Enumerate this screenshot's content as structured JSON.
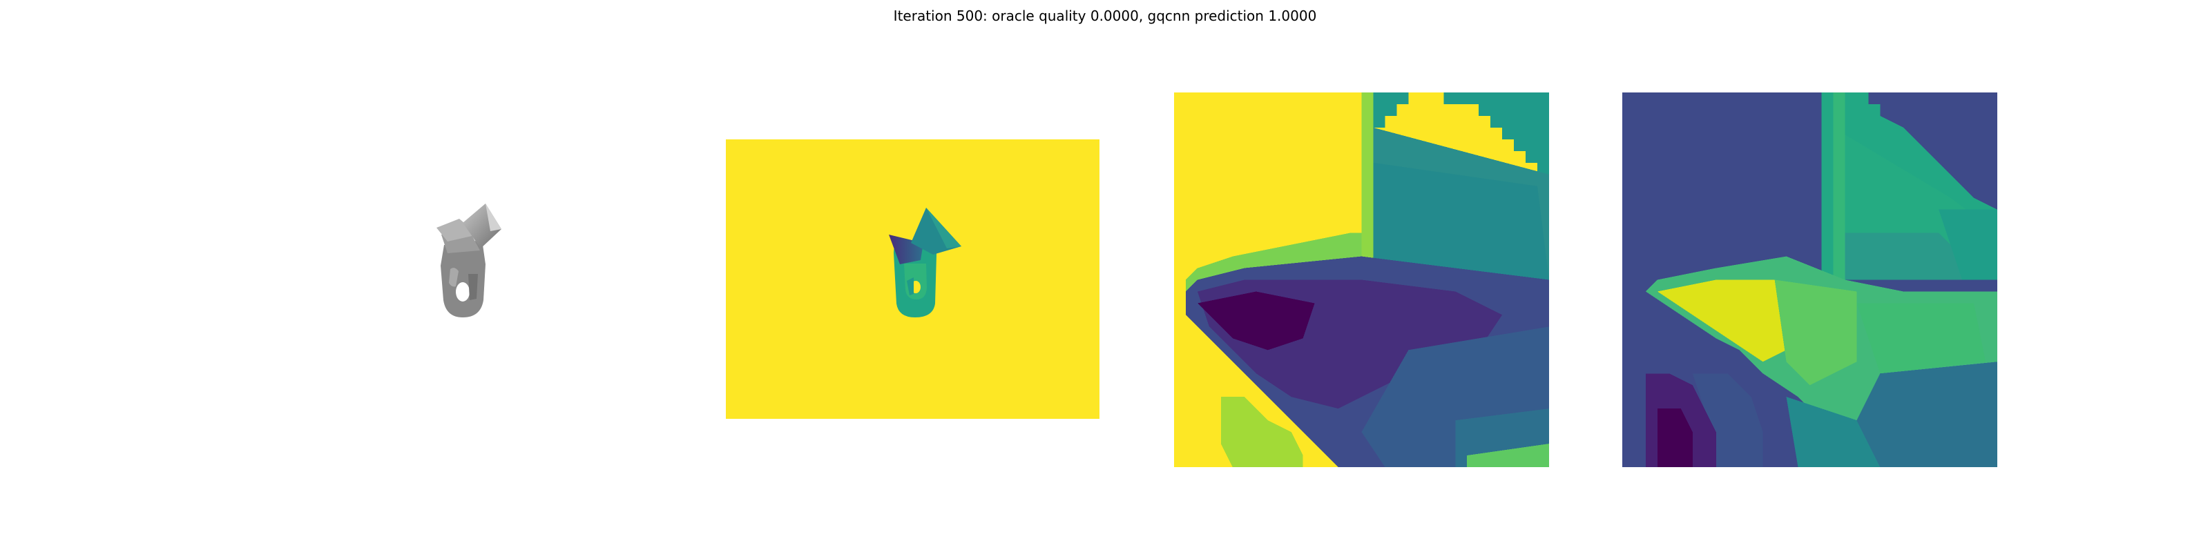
{
  "figure": {
    "title": "Iteration 500: oracle quality 0.0000, gqcnn prediction 1.0000"
  },
  "colors": {
    "viridis_yellow": "#fde725",
    "viridis_purple": "#440154",
    "viridis_teal": "#2a788e",
    "viridis_green": "#22a884",
    "viridis_dark_blue": "#3b4b8c",
    "object_gray": "#8f8f8f"
  }
}
